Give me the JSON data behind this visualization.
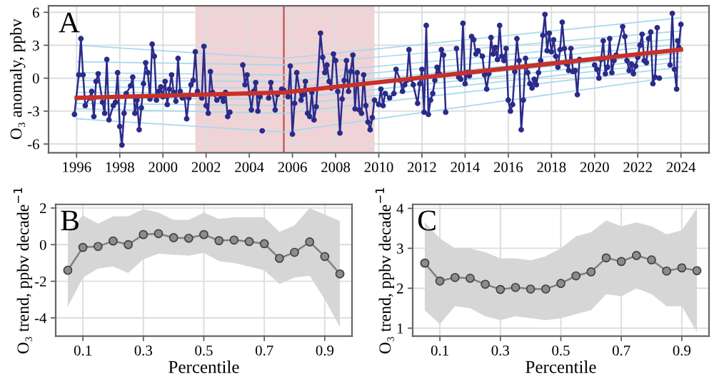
{
  "chart_data": [
    {
      "type": "line",
      "annotations": [
        "A"
      ],
      "ylabel": "O₃ anomaly, ppbv",
      "xlim": [
        1994.7,
        2025.3
      ],
      "xticks": [
        1996,
        1998,
        2000,
        2002,
        2004,
        2006,
        2008,
        2010,
        2012,
        2014,
        2016,
        2018,
        2020,
        2022,
        2024
      ],
      "ylim": [
        -6.8,
        6.6
      ],
      "yticks": [
        -6,
        -3,
        0,
        3,
        6
      ],
      "grid": true,
      "bands": [
        {
          "axis": "x",
          "from": 2001.5,
          "to": 2009.8,
          "color": "#efd3d6"
        }
      ],
      "ref_lines": [
        {
          "axis": "x",
          "value": 2005.6,
          "color": "#c05050",
          "line_style": "solid"
        }
      ],
      "series": [
        {
          "color": "#a6d8ee",
          "x": [
            1996,
            2005.6,
            2024
          ],
          "values": [
            -3.7,
            -4.9,
            0.2
          ]
        },
        {
          "color": "#a6d8ee",
          "x": [
            1996,
            2005.6,
            2024
          ],
          "values": [
            -2.8,
            -3.2,
            1.0
          ]
        },
        {
          "color": "#a6d8ee",
          "x": [
            1996,
            2005.6,
            2024
          ],
          "values": [
            -2.3,
            -2.5,
            1.5
          ]
        },
        {
          "color": "#a6d8ee",
          "x": [
            1996,
            2005.6,
            2024
          ],
          "values": [
            -1.8,
            -1.9,
            1.9
          ]
        },
        {
          "color": "#a6d8ee",
          "x": [
            1996,
            2005.6,
            2024
          ],
          "values": [
            -1.3,
            -1.4,
            2.3
          ]
        },
        {
          "color": "#a6d8ee",
          "x": [
            1996,
            2005.6,
            2024
          ],
          "values": [
            -0.8,
            -0.9,
            2.7
          ]
        },
        {
          "color": "#a6d8ee",
          "x": [
            1996,
            2005.6,
            2024
          ],
          "values": [
            -0.2,
            -0.3,
            3.1
          ]
        },
        {
          "color": "#a6d8ee",
          "x": [
            1996,
            2005.6,
            2024
          ],
          "values": [
            0.5,
            0.3,
            3.6
          ]
        },
        {
          "color": "#a6d8ee",
          "x": [
            1996,
            2005.6,
            2024
          ],
          "values": [
            1.5,
            1.2,
            4.3
          ]
        },
        {
          "color": "#a6d8ee",
          "x": [
            1996,
            2005.6,
            2024
          ],
          "values": [
            3.0,
            1.8,
            5.5
          ]
        },
        {
          "color": "#2b2b8a",
          "marker": "circle",
          "x": [
            1995.9,
            1996.1,
            1996.2,
            1996.3,
            1996.4,
            1996.6,
            1996.7,
            1996.8,
            1996.9,
            1997.0,
            1997.2,
            1997.3,
            1997.4,
            1997.5,
            1997.7,
            1997.8,
            1997.9,
            1998.0,
            1998.1,
            1998.2,
            1998.3,
            1998.5,
            1998.6,
            1998.7,
            1998.8,
            1998.9,
            1999.0,
            1999.1,
            1999.2,
            1999.3,
            1999.4,
            1999.5,
            1999.6,
            1999.7,
            1999.8,
            1999.9,
            2000.0,
            2000.1,
            2000.2,
            2000.3,
            2000.4,
            2000.5,
            2000.6,
            2000.7,
            2000.8,
            2000.9,
            2001.0,
            2001.1,
            2001.2,
            2001.3,
            2001.4,
            2001.5,
            2001.6,
            2001.8,
            2001.9,
            2002.0,
            2002.1,
            2002.2,
            2002.3,
            2002.5,
            2002.7,
            2002.8,
            2002.9,
            2003.0,
            2003.1,
            2003.4,
            2003.7,
            2003.8,
            2003.9,
            2004.0,
            2004.1,
            2004.2,
            2004.3,
            2004.4,
            2004.5,
            2004.55,
            2004.6,
            2004.75,
            2004.9,
            2005.0,
            2005.2,
            2005.3,
            2005.5,
            2005.6,
            2005.8,
            2005.9,
            2006.0,
            2006.1,
            2006.2,
            2006.4,
            2006.5,
            2006.6,
            2006.7,
            2006.8,
            2006.9,
            2007.0,
            2007.1,
            2007.3,
            2007.4,
            2007.5,
            2007.6,
            2007.7,
            2007.8,
            2007.9,
            2008.0,
            2008.1,
            2008.2,
            2008.3,
            2008.4,
            2008.5,
            2008.6,
            2008.7,
            2008.8,
            2008.9,
            2009.0,
            2009.1,
            2009.2,
            2009.3,
            2009.4,
            2009.5,
            2009.6,
            2009.7,
            2009.8,
            2010.0,
            2010.1,
            2010.2,
            2010.3,
            2010.5,
            2010.7,
            2010.8,
            2011.0,
            2011.1,
            2011.2,
            2011.3,
            2011.4,
            2011.5,
            2011.6,
            2011.8,
            2011.9,
            2012.0,
            2012.1,
            2012.2,
            2012.3,
            2012.4,
            2012.5,
            2012.6,
            2012.7,
            2012.8,
            2012.9,
            2013.0,
            2013.1,
            2013.4,
            2013.6,
            2013.7,
            2013.8,
            2013.9,
            2014.0,
            2014.1,
            2014.2,
            2014.3,
            2014.4,
            2014.5,
            2014.6,
            2014.8,
            2014.9,
            2015.0,
            2015.1,
            2015.2,
            2015.3,
            2015.4,
            2015.5,
            2015.6,
            2015.7,
            2015.8,
            2015.9,
            2016.0,
            2016.1,
            2016.2,
            2016.3,
            2016.4,
            2016.5,
            2016.6,
            2016.7,
            2016.8,
            2016.9,
            2017.0,
            2017.1,
            2017.2,
            2017.3,
            2017.4,
            2017.5,
            2017.6,
            2017.7,
            2017.8,
            2017.9,
            2018.0,
            2018.1,
            2018.2,
            2018.3,
            2018.4,
            2018.5,
            2018.6,
            2018.7,
            2018.8,
            2018.9,
            2019.0,
            2019.1,
            2019.2,
            2019.3,
            2019.6,
            2020.0,
            2020.1,
            2020.2,
            2020.3,
            2020.4,
            2020.5,
            2020.6,
            2020.7,
            2020.8,
            2020.9,
            2021.0,
            2021.3,
            2021.4,
            2021.5,
            2021.6,
            2021.7,
            2021.8,
            2021.9,
            2022.0,
            2022.1,
            2022.2,
            2022.3,
            2022.4,
            2022.5,
            2022.6,
            2022.7,
            2022.8,
            2022.9,
            2022.95,
            2023.0,
            2023.2,
            2023.5,
            2023.6,
            2023.7,
            2023.8,
            2023.85,
            2023.9,
            2024.0
          ],
          "values": [
            -3.3,
            0.3,
            3.6,
            0.3,
            -2.5,
            -1.8,
            -1.2,
            -3.5,
            -0.3,
            0.4,
            -2.2,
            -3.2,
            1.7,
            -3.8,
            -2.5,
            -2.2,
            0.5,
            -4.4,
            -6.1,
            -3.2,
            -1.4,
            -0.7,
            0.1,
            -3.2,
            -2.0,
            -4.7,
            -2.7,
            -0.5,
            1.4,
            0.5,
            -1.9,
            3.1,
            2.0,
            -2.0,
            -1.2,
            -0.8,
            -1.7,
            -0.3,
            -2.4,
            -1.0,
            0.3,
            -1.3,
            -2.1,
            1.8,
            -1.2,
            -1.8,
            -1.6,
            -3.7,
            -1.8,
            -0.6,
            -0.2,
            2.4,
            -1.2,
            -1.8,
            2.9,
            -2.5,
            -3.2,
            0.6,
            -1.3,
            -2.0,
            -1.7,
            -2.1,
            -1.3,
            -3.5,
            -3.1,
            null,
            1.2,
            -0.6,
            0.3,
            -1.4,
            -2.9,
            -1.2,
            -0.4,
            -3.0,
            -1.7,
            null,
            -4.8,
            null,
            -1.8,
            -0.4,
            -2.9,
            -1.5,
            -1.0,
            -1.1,
            -1.7,
            1.1,
            -5.1,
            -2.3,
            0.5,
            -2.0,
            -1.5,
            -0.3,
            -3.2,
            -3.5,
            -1.3,
            -3.8,
            -2.6,
            4.1,
            1.9,
            0.5,
            1.2,
            -0.3,
            -0.9,
            2.2,
            1.6,
            -1.2,
            -5.0,
            -1.9,
            -0.2,
            1.6,
            -1.2,
            0.6,
            2.1,
            -2.8,
            0.5,
            -2.9,
            -3.2,
            0.3,
            -2.5,
            -4.0,
            -4.7,
            -3.6,
            -2.0,
            -2.4,
            -1.0,
            -2.5,
            -1.4,
            -1.8,
            -1.4,
            0.8,
            -0.2,
            -1.2,
            -0.6,
            -0.2,
            2.6,
            -0.1,
            -0.6,
            -2.3,
            -0.5,
            0.8,
            -3.1,
            4.8,
            -3.3,
            -2.0,
            -1.4,
            -0.2,
            1.0,
            0.4,
            2.6,
            2.1,
            -3.1,
            null,
            2.7,
            0.1,
            -0.1,
            5.0,
            -0.5,
            0.5,
            0.2,
            3.8,
            3.5,
            2.2,
            2.5,
            2.0,
            0.3,
            -1.0,
            0.4,
            3.7,
            2.2,
            2.8,
            1.7,
            4.8,
            2.0,
            1.6,
            2.7,
            -2.0,
            -3.0,
            -2.4,
            0.6,
            3.6,
            1.6,
            -4.7,
            -2.0,
            1.8,
            0.5,
            -0.5,
            -0.9,
            -0.1,
            -0.6,
            0.5,
            1.6,
            3.9,
            5.8,
            2.5,
            4.1,
            2.4,
            3.5,
            2.0,
            1.0,
            2.6,
            5.1,
            2.7,
            1.3,
            0.7,
            2.7,
            0.6,
            0.7,
            -1.5,
            1.7,
            null,
            1.2,
            0.8,
            0.0,
            1.7,
            3.4,
            0.4,
            1.0,
            3.6,
            0.5,
            1.6,
            2.1,
            4.7,
            3.8,
            1.6,
            0.7,
            1.3,
            0.4,
            1.1,
            1.9,
            3.0,
            4.0,
            1.6,
            1.4,
            3.6,
            4.2,
            -0.5,
            0.1,
            4.6,
            null,
            0.0,
            null,
            1.2,
            5.9,
            0.8,
            -1.0,
            3.4,
            2.8,
            4.9
          ]
        },
        {
          "color": "#c8302a",
          "x": [
            1996,
            2005.6,
            2024
          ],
          "values": [
            -1.8,
            -1.3,
            2.6
          ]
        }
      ]
    },
    {
      "type": "line",
      "annotations": [
        "B"
      ],
      "xlabel": "Percentile",
      "ylabel": "O₃ trend, ppbv decade$^{−1}$",
      "xlim": [
        0.01,
        0.99
      ],
      "xticks": [
        0.1,
        0.3,
        0.5,
        0.7,
        0.9
      ],
      "ylim": [
        -5.0,
        2.2
      ],
      "yticks": [
        -4,
        -2,
        0,
        2
      ],
      "grid": true,
      "x": [
        0.05,
        0.1,
        0.15,
        0.2,
        0.25,
        0.3,
        0.35,
        0.4,
        0.45,
        0.5,
        0.55,
        0.6,
        0.65,
        0.7,
        0.75,
        0.8,
        0.85,
        0.9,
        0.95
      ],
      "series": [
        {
          "color": "#7f7f7f",
          "marker": "circle",
          "values": [
            -1.4,
            -0.15,
            -0.1,
            0.2,
            0.0,
            0.55,
            0.6,
            0.38,
            0.35,
            0.55,
            0.22,
            0.25,
            0.17,
            0.05,
            -0.75,
            -0.42,
            0.15,
            -0.65,
            -1.6
          ],
          "lower": [
            -3.4,
            -1.8,
            -1.3,
            -1.2,
            -1.55,
            -0.8,
            -0.5,
            -0.55,
            -0.6,
            -0.45,
            -0.9,
            -1.0,
            -1.2,
            -1.4,
            -2.15,
            -1.8,
            -1.7,
            -3.0,
            -4.5
          ],
          "upper": [
            0.7,
            1.6,
            1.15,
            1.55,
            1.55,
            1.95,
            1.75,
            1.35,
            1.35,
            1.75,
            1.4,
            1.5,
            1.5,
            1.5,
            0.7,
            1.05,
            2.0,
            1.65,
            1.3
          ]
        }
      ]
    },
    {
      "type": "line",
      "annotations": [
        "C"
      ],
      "xlabel": "Percentile",
      "ylabel": "O₃ trend, ppbv decade$^{−1}$",
      "xlim": [
        0.01,
        0.99
      ],
      "xticks": [
        0.1,
        0.3,
        0.5,
        0.7,
        0.9
      ],
      "ylim": [
        0.8,
        4.1
      ],
      "yticks": [
        1,
        2,
        3,
        4
      ],
      "grid": true,
      "x": [
        0.05,
        0.1,
        0.15,
        0.2,
        0.25,
        0.3,
        0.35,
        0.4,
        0.45,
        0.5,
        0.55,
        0.6,
        0.65,
        0.7,
        0.75,
        0.8,
        0.85,
        0.9,
        0.95
      ],
      "series": [
        {
          "color": "#7f7f7f",
          "marker": "circle",
          "values": [
            2.63,
            2.18,
            2.27,
            2.25,
            2.1,
            1.97,
            2.02,
            1.98,
            1.98,
            2.12,
            2.31,
            2.41,
            2.76,
            2.67,
            2.82,
            2.71,
            2.43,
            2.51,
            2.44
          ],
          "lower": [
            1.45,
            1.1,
            1.55,
            1.5,
            1.3,
            1.2,
            1.3,
            1.25,
            1.2,
            1.25,
            1.35,
            1.45,
            1.85,
            1.8,
            2.0,
            1.85,
            1.55,
            1.55,
            0.9
          ],
          "upper": [
            3.65,
            3.25,
            3.0,
            3.0,
            2.9,
            2.75,
            2.75,
            2.7,
            2.8,
            3.0,
            3.3,
            3.4,
            3.7,
            3.55,
            3.65,
            3.55,
            3.35,
            3.45,
            4.0
          ]
        }
      ]
    }
  ]
}
